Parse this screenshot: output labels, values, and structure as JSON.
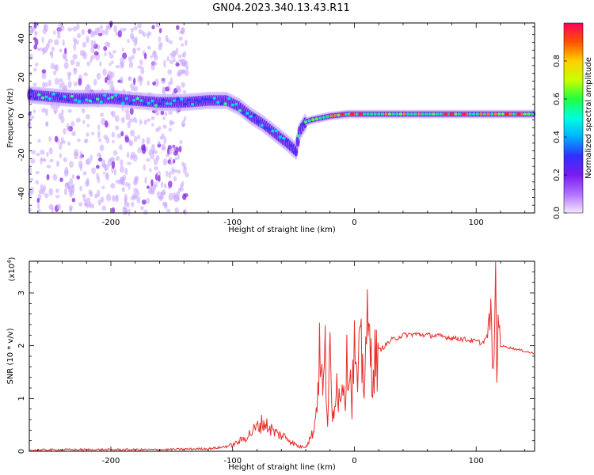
{
  "title": "GN04.2023.340.13.43.R11",
  "colors": {
    "snr_line": "#e8302c",
    "axis": "#000000"
  },
  "chart_data": [
    {
      "type": "heatmap",
      "xlabel": "Height of straight line (km)",
      "ylabel": "Frequency (Hz)",
      "xlim": [
        -267,
        148
      ],
      "ylim": [
        -50,
        48
      ],
      "x_ticks": [
        "-200",
        "-100",
        "0",
        "100"
      ],
      "y_ticks": [
        "-40",
        "-20",
        "0",
        "20",
        "40"
      ],
      "colorbar": {
        "label": "Normalized spectral amplitude",
        "ticks": [
          "0.0",
          "0.2",
          "0.4",
          "0.6",
          "0.8"
        ],
        "colormap": [
          "#f3e8ff",
          "#b070ff",
          "#7a1cf0",
          "#3030ff",
          "#00b0ff",
          "#00ffe0",
          "#20ff40",
          "#c8ff00",
          "#ffd000",
          "#ff5000",
          "#ff0060"
        ]
      },
      "ridge": [
        {
          "x": -267,
          "y": 11
        },
        {
          "x": -250,
          "y": 10
        },
        {
          "x": -230,
          "y": 9
        },
        {
          "x": -200,
          "y": 9
        },
        {
          "x": -180,
          "y": 8
        },
        {
          "x": -160,
          "y": 7
        },
        {
          "x": -140,
          "y": 7
        },
        {
          "x": -120,
          "y": 8
        },
        {
          "x": -105,
          "y": 8
        },
        {
          "x": -95,
          "y": 5
        },
        {
          "x": -85,
          "y": 0
        },
        {
          "x": -75,
          "y": -4
        },
        {
          "x": -65,
          "y": -9
        },
        {
          "x": -55,
          "y": -14
        },
        {
          "x": -48,
          "y": -18
        },
        {
          "x": -45,
          "y": -8
        },
        {
          "x": -40,
          "y": -3
        },
        {
          "x": -35,
          "y": -2
        },
        {
          "x": -20,
          "y": 0
        },
        {
          "x": -5,
          "y": 1
        },
        {
          "x": 10,
          "y": 1
        },
        {
          "x": 30,
          "y": 1
        },
        {
          "x": 60,
          "y": 1
        },
        {
          "x": 80,
          "y": 1
        },
        {
          "x": 100,
          "y": 1
        },
        {
          "x": 110,
          "y": 1
        },
        {
          "x": 120,
          "y": 1
        },
        {
          "x": 148,
          "y": 1
        }
      ]
    },
    {
      "type": "line",
      "xlabel": "Height of straight line (km)",
      "ylabel": "SNR (10 * v/v)",
      "multiplier": "(x10",
      "multiplier_exp": "4",
      "multiplier_close": ")",
      "xlim": [
        -267,
        148
      ],
      "ylim": [
        0,
        3.6
      ],
      "x_ticks": [
        "-200",
        "-100",
        "0",
        "100"
      ],
      "y_ticks": [
        "0",
        "1",
        "2",
        "3"
      ],
      "series": [
        {
          "x": [
            -267,
            -240,
            -200,
            -160,
            -140,
            -120,
            -110,
            -100,
            -95,
            -90,
            -85,
            -80,
            -75,
            -70,
            -65,
            -60,
            -55,
            -50,
            -45,
            -40,
            -35,
            -32,
            -30,
            -28,
            -26,
            -24,
            -22,
            -20,
            -18,
            -15,
            -12,
            -10,
            -8,
            -5,
            -2,
            0,
            2,
            5,
            8,
            10,
            15,
            20,
            25,
            30,
            40,
            50,
            60,
            70,
            80,
            90,
            100,
            105,
            110,
            112,
            114,
            116,
            117,
            118,
            120,
            130,
            148
          ],
          "y": [
            0.02,
            0.03,
            0.03,
            0.03,
            0.04,
            0.05,
            0.07,
            0.12,
            0.18,
            0.25,
            0.35,
            0.45,
            0.55,
            0.45,
            0.35,
            0.3,
            0.25,
            0.15,
            0.08,
            0.1,
            0.3,
            0.6,
            1.3,
            2.0,
            1.0,
            1.8,
            0.6,
            1.7,
            0.5,
            1.5,
            0.9,
            1.6,
            1.1,
            1.9,
            1.0,
            2.0,
            1.2,
            1.9,
            1.4,
            2.3,
            1.6,
            1.9,
            2.0,
            2.1,
            2.2,
            2.22,
            2.2,
            2.18,
            2.15,
            2.12,
            2.08,
            2.05,
            2.2,
            2.7,
            1.3,
            3.55,
            1.1,
            2.6,
            2.0,
            1.95,
            1.85
          ]
        }
      ]
    }
  ]
}
